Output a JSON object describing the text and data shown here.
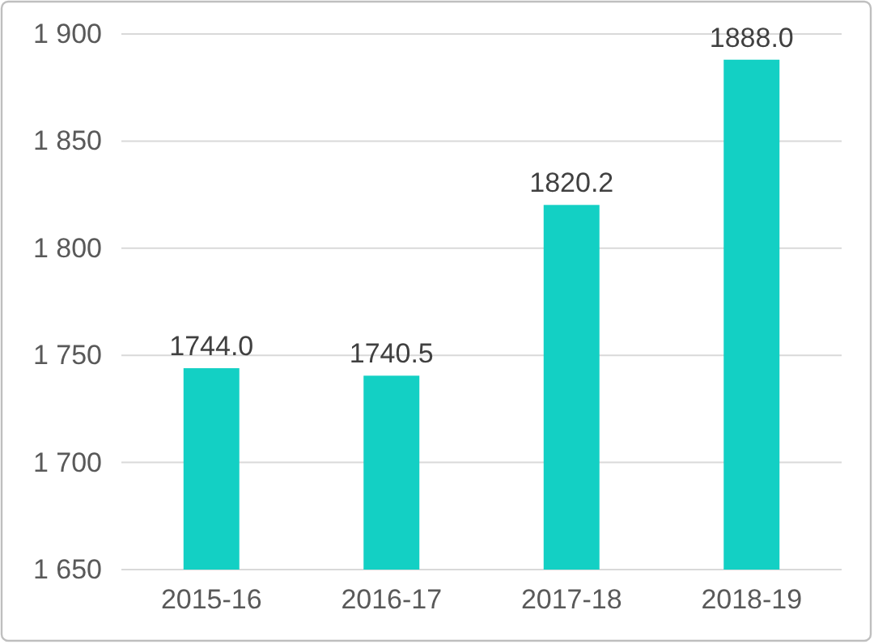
{
  "chart_data": {
    "type": "bar",
    "categories": [
      "2015-16",
      "2016-17",
      "2017-18",
      "2018-19"
    ],
    "values": [
      1744.0,
      1740.5,
      1820.2,
      1888.0
    ],
    "value_labels": [
      "1744.0",
      "1740.5",
      "1820.2",
      "1888.0"
    ],
    "color": "#13d0c4",
    "ylim": [
      1650,
      1900
    ],
    "yticks": [
      {
        "value": 1650,
        "label": "1 650"
      },
      {
        "value": 1700,
        "label": "1 700"
      },
      {
        "value": 1750,
        "label": "1 750"
      },
      {
        "value": 1800,
        "label": "1 800"
      },
      {
        "value": 1850,
        "label": "1 850"
      },
      {
        "value": 1900,
        "label": "1 900"
      }
    ],
    "grid": "y"
  }
}
